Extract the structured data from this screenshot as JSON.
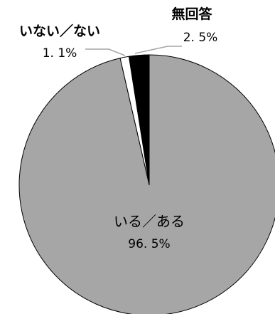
{
  "chart_data": {
    "type": "pie",
    "start_angle": "12 o'clock",
    "direction": "counterclockwise",
    "slices": [
      {
        "label": "無回答",
        "value_label": "2.5%",
        "value": 2.5,
        "color": "#000000"
      },
      {
        "label": "いない／ない",
        "value_label": "1.1%",
        "value": 1.1,
        "color": "#ffffff"
      },
      {
        "label": "いる／ある",
        "value_label": "96.5%",
        "value": 96.5,
        "color": "#a6a6a6"
      }
    ],
    "title": "",
    "legend": "none"
  },
  "labels": {
    "no_answer_name": "無回答",
    "no_answer_value": "2. 5%",
    "no_name": "いない／ない",
    "no_value": "1. 1%",
    "yes_name": "いる／ある",
    "yes_value": "96. 5%"
  }
}
